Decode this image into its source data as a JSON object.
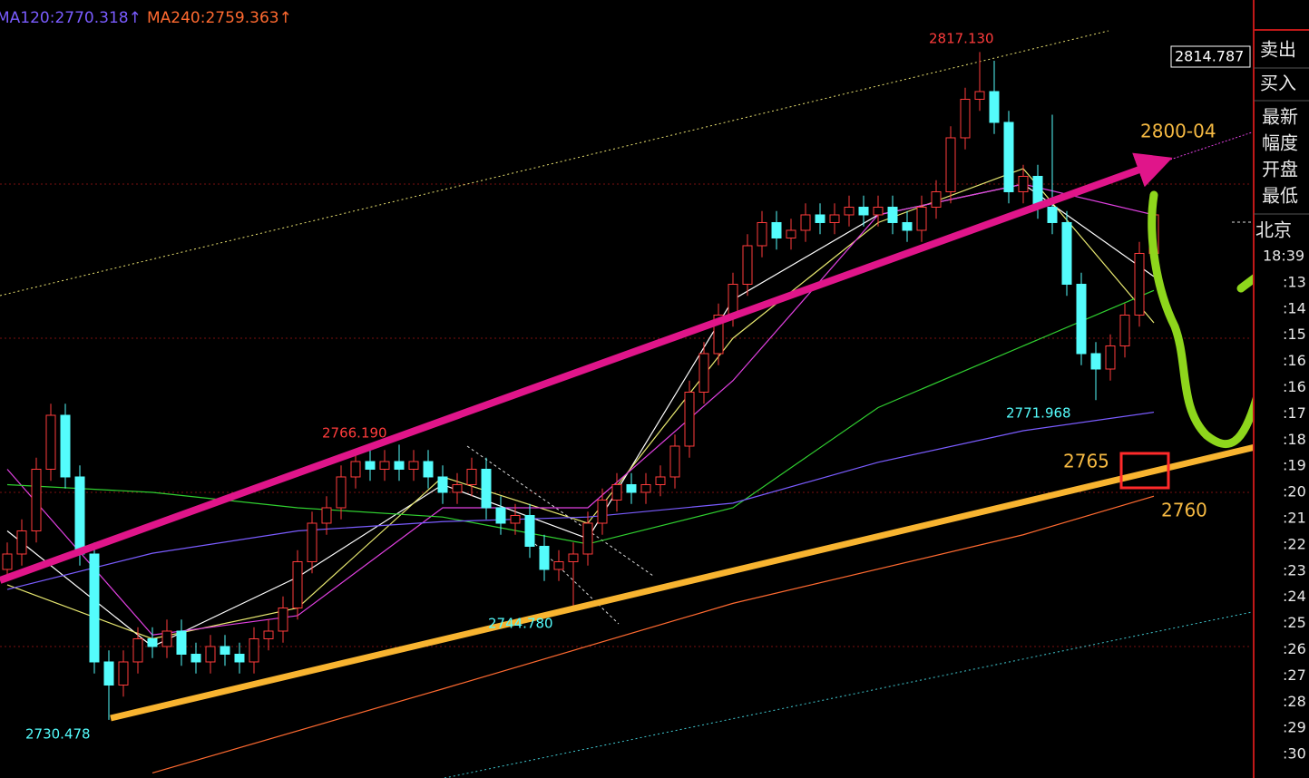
{
  "chart_data": {
    "type": "candlestick",
    "ylim": [
      2722.94,
      2823.88
    ],
    "grid_levels": [
      2740,
      2760,
      2780,
      2800
    ],
    "grid_color": "#7a1010",
    "up_color": "#ff3c3c",
    "down_color": "#54fcfc",
    "candles": {
      "open": [
        2750,
        2752,
        2755,
        2763,
        2770,
        2762,
        2752,
        2738,
        2735,
        2738,
        2741,
        2740,
        2742,
        2739,
        2738,
        2740,
        2739,
        2738,
        2741,
        2742,
        2745,
        2751,
        2756,
        2758,
        2762,
        2764,
        2763,
        2764,
        2763,
        2764,
        2762,
        2760,
        2761,
        2763,
        2758,
        2756,
        2757,
        2753,
        2750,
        2751,
        2752,
        2756,
        2759,
        2761,
        2760,
        2761,
        2762,
        2766,
        2773,
        2778,
        2783,
        2787,
        2792,
        2795,
        2793,
        2794,
        2796,
        2795,
        2796,
        2797,
        2796,
        2797,
        2795,
        2794,
        2797,
        2799,
        2806,
        2811,
        2812,
        2808,
        2799,
        2801,
        2797,
        2795,
        2787,
        2778,
        2776,
        2779,
        2783,
        2791
      ],
      "high": [
        2753.5,
        2756.5,
        2764.5,
        2771.5,
        2771.5,
        2763.5,
        2753.5,
        2739.5,
        2739.5,
        2742.5,
        2742.5,
        2743.5,
        2743.5,
        2740.5,
        2741.5,
        2741.5,
        2740.5,
        2742.5,
        2743.5,
        2746.5,
        2752.5,
        2757.5,
        2759.5,
        2763.5,
        2765.5,
        2765.5,
        2765.5,
        2766.19,
        2765.5,
        2765.5,
        2763.5,
        2762.5,
        2764.5,
        2764.5,
        2759.5,
        2758.5,
        2758.5,
        2754.5,
        2752.5,
        2753.5,
        2757.5,
        2760.5,
        2762.5,
        2762.5,
        2762.5,
        2763.5,
        2767.5,
        2774.5,
        2779.5,
        2784.5,
        2788.5,
        2793.5,
        2796.5,
        2796.5,
        2795.5,
        2797.5,
        2797.5,
        2797.5,
        2798.5,
        2798.5,
        2798.5,
        2798.5,
        2796.5,
        2798.5,
        2800.5,
        2807.5,
        2812.5,
        2817.13,
        2816,
        2809.5,
        2802.5,
        2802.5,
        2809,
        2796.5,
        2788.5,
        2779.5,
        2780.5,
        2784.5,
        2792.5,
        2797.5
      ],
      "low": [
        2748.5,
        2750.5,
        2753.5,
        2761.5,
        2760.5,
        2750.5,
        2736.5,
        2730.478,
        2733.5,
        2736.5,
        2738.5,
        2738.5,
        2737.5,
        2736.5,
        2736.5,
        2737.5,
        2736.5,
        2736.5,
        2739.5,
        2740.5,
        2743.5,
        2749.5,
        2754.5,
        2756.5,
        2760.5,
        2761.5,
        2761.5,
        2761.5,
        2761.5,
        2760.5,
        2758.5,
        2758.5,
        2759.5,
        2756.5,
        2754.5,
        2754.5,
        2751.5,
        2748.5,
        2748.5,
        2744.78,
        2750.5,
        2754.5,
        2757.5,
        2758.5,
        2758.5,
        2759.5,
        2760.5,
        2764.5,
        2771.5,
        2776.5,
        2781.5,
        2785.5,
        2790.5,
        2791.5,
        2791.5,
        2792.5,
        2793.5,
        2793.5,
        2794.5,
        2794.5,
        2794.5,
        2793.5,
        2792.5,
        2792.5,
        2795.5,
        2797.5,
        2804.5,
        2809.5,
        2806.5,
        2797.5,
        2797.5,
        2795.5,
        2793.5,
        2785.5,
        2776.5,
        2771.968,
        2774.5,
        2777.5,
        2781.5,
        2789.5
      ],
      "close": [
        2752,
        2755,
        2763,
        2770,
        2762,
        2752,
        2738,
        2735,
        2738,
        2741,
        2740,
        2742,
        2739,
        2738,
        2740,
        2739,
        2738,
        2741,
        2742,
        2745,
        2751,
        2756,
        2758,
        2762,
        2764,
        2763,
        2764,
        2763,
        2764,
        2762,
        2760,
        2761,
        2763,
        2758,
        2756,
        2757,
        2753,
        2750,
        2751,
        2752,
        2756,
        2759,
        2761,
        2760,
        2761,
        2762,
        2766,
        2773,
        2778,
        2783,
        2787,
        2792,
        2795,
        2793,
        2794,
        2796,
        2795,
        2796,
        2797,
        2796,
        2797,
        2795,
        2794,
        2797,
        2799,
        2806,
        2811,
        2812,
        2808,
        2799,
        2801,
        2797,
        2795,
        2787,
        2778,
        2776,
        2779,
        2783,
        2791,
        2796
      ]
    },
    "lines": [
      {
        "color": "#ffffff",
        "x": [
          0,
          10,
          20,
          30,
          40,
          50,
          60,
          70,
          79
        ],
        "values": [
          2755,
          2740,
          2749,
          2761,
          2754,
          2785,
          2796,
          2800,
          2788
        ]
      },
      {
        "color": "#e8e870",
        "x": [
          0,
          10,
          20,
          30,
          40,
          50,
          60,
          70,
          79
        ],
        "values": [
          2748,
          2741,
          2745,
          2762,
          2756,
          2780,
          2795,
          2802,
          2782
        ]
      },
      {
        "color": "#e040e0",
        "x": [
          0,
          10,
          20,
          30,
          40,
          50,
          60,
          70,
          79
        ],
        "values": [
          2763,
          2741.5,
          2744,
          2758,
          2758,
          2774.5,
          2796,
          2800,
          2796
        ]
      },
      {
        "color": "#30d030",
        "x": [
          0,
          10,
          20,
          30,
          40,
          50,
          60,
          70,
          79
        ],
        "values": [
          2761,
          2760,
          2758,
          2756.8,
          2753.3,
          2758,
          2771,
          2779,
          2786.2
        ]
      },
      {
        "name": "MA120",
        "label": "MA120:2770.318↑",
        "color": "#7a5cff",
        "x": [
          0,
          10,
          20,
          30,
          40,
          50,
          60,
          70,
          79
        ],
        "values": [
          2747.4,
          2752.1,
          2755,
          2756.2,
          2756.8,
          2758.6,
          2763.9,
          2768,
          2770.4
        ]
      },
      {
        "name": "MA240",
        "label": "MA240:2759.363↑",
        "color": "#ff6a30",
        "x": [
          10,
          30,
          50,
          70,
          79
        ],
        "values": [
          2723.6,
          2734.5,
          2745.6,
          2754.5,
          2759.5
        ]
      }
    ],
    "price_labels": [
      "2817.130",
      "2766.190",
      "2744.780",
      "2730.478",
      "2771.968"
    ],
    "current_price": "2814.787",
    "targets": [
      "2800-04",
      "2765",
      "2760"
    ]
  },
  "side_panel": {
    "quotes": [
      "卖出",
      "买入",
      "最新",
      "幅度",
      "开盘",
      "最低"
    ],
    "city": "北京",
    "times": [
      "18:39",
      ":13",
      ":14",
      ":15",
      ":16",
      ":16",
      ":17",
      ":18",
      ":19",
      ":20",
      ":21",
      ":22",
      ":23",
      ":24",
      ":25",
      ":26",
      ":27",
      ":28",
      ":29",
      ":30"
    ]
  }
}
